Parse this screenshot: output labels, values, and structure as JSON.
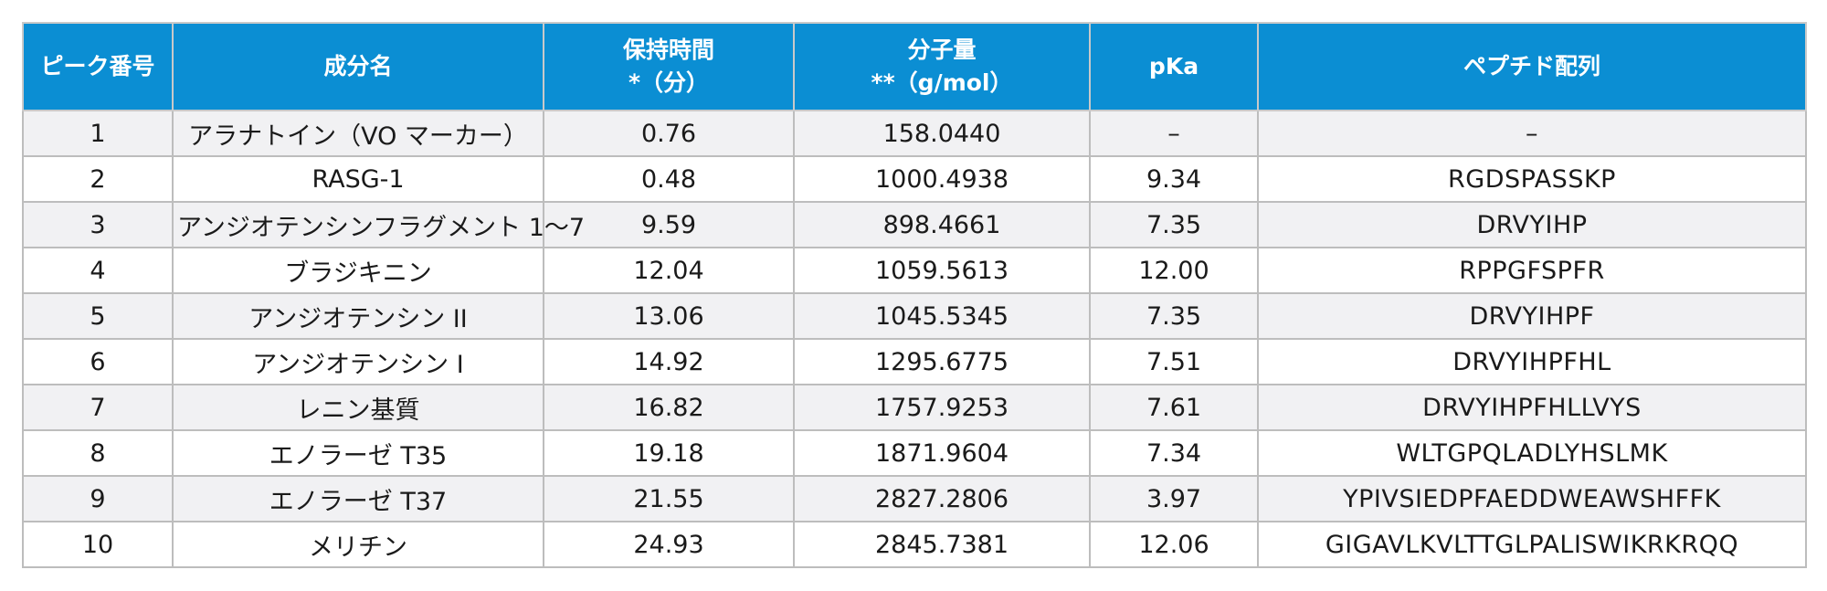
{
  "table": {
    "headers": [
      {
        "lines": [
          "ピーク番号"
        ]
      },
      {
        "lines": [
          "成分名"
        ]
      },
      {
        "lines": [
          "保持時間",
          "*（分）"
        ]
      },
      {
        "lines": [
          "分子量",
          "**（g/mol）"
        ]
      },
      {
        "lines": [
          "pKa"
        ]
      },
      {
        "lines": [
          "ペプチド配列"
        ]
      }
    ],
    "rows": [
      {
        "peak": "1",
        "name": "アラナトイン（VO マーカー）",
        "rt": "0.76",
        "mw": "158.0440",
        "pka": "–",
        "seq": "–"
      },
      {
        "peak": "2",
        "name": "RASG-1",
        "rt": "0.48",
        "mw": "1000.4938",
        "pka": "9.34",
        "seq": "RGDSPASSKP"
      },
      {
        "peak": "3",
        "name": "アンジオテンシンフラグメント 1～7",
        "rt": "9.59",
        "mw": "898.4661",
        "pka": "7.35",
        "seq": "DRVYIHP"
      },
      {
        "peak": "4",
        "name": "ブラジキニン",
        "rt": "12.04",
        "mw": "1059.5613",
        "pka": "12.00",
        "seq": "RPPGFSPFR"
      },
      {
        "peak": "5",
        "name": "アンジオテンシン II",
        "rt": "13.06",
        "mw": "1045.5345",
        "pka": "7.35",
        "seq": "DRVYIHPF"
      },
      {
        "peak": "6",
        "name": "アンジオテンシン I",
        "rt": "14.92",
        "mw": "1295.6775",
        "pka": "7.51",
        "seq": "DRVYIHPFHL"
      },
      {
        "peak": "7",
        "name": "レニン基質",
        "rt": "16.82",
        "mw": "1757.9253",
        "pka": "7.61",
        "seq": "DRVYIHPFHLLVYS"
      },
      {
        "peak": "8",
        "name": "エノラーゼ T35",
        "rt": "19.18",
        "mw": "1871.9604",
        "pka": "7.34",
        "seq": "WLTGPQLADLYHSLMK"
      },
      {
        "peak": "9",
        "name": "エノラーゼ T37",
        "rt": "21.55",
        "mw": "2827.2806",
        "pka": "3.97",
        "seq": "YPIVSIEDPFAEDDWEAWSHFFK"
      },
      {
        "peak": "10",
        "name": "メリチン",
        "rt": "24.93",
        "mw": "2845.7381",
        "pka": "12.06",
        "seq": "GIGAVLKVLTTGLPALISWIKRKRQQ"
      }
    ]
  },
  "colors": {
    "header_bg": "#0b8ed3",
    "header_text": "#ffffff",
    "row_stripe": "#f1f1f3",
    "border": "#bdbdbd"
  }
}
